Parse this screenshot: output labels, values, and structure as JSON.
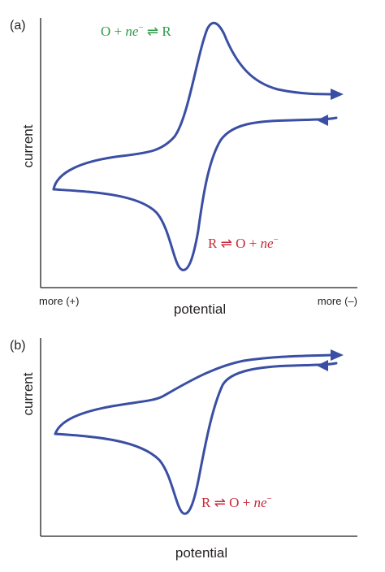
{
  "colors": {
    "curve": "#3a4fa3",
    "oxidation": "#2e9a48",
    "reduction": "#c8283a",
    "axis": "#231f20"
  },
  "chart_data": [
    {
      "type": "line",
      "panel_label": "(a)",
      "ylabel": "current",
      "xlabel": "potential",
      "x_tick_left": "more (+)",
      "x_tick_right": "more (–)",
      "annotations": [
        {
          "label_parts": [
            "O + ",
            "ne",
            "−",
            " ⇌ R"
          ],
          "color": "oxidation"
        },
        {
          "label_parts": [
            "R ⇌ O + ",
            "ne",
            "−",
            ""
          ],
          "color": "reduction"
        }
      ],
      "series": [
        {
          "direction": "forward-scan",
          "arrow": "right"
        },
        {
          "direction": "reverse-scan",
          "arrow": "left"
        }
      ]
    },
    {
      "type": "line",
      "panel_label": "(b)",
      "ylabel": "current",
      "xlabel": "potential",
      "annotations": [
        {
          "label_parts": [
            "R ⇌ O + ",
            "ne",
            "−",
            ""
          ],
          "color": "reduction"
        }
      ],
      "series": [
        {
          "direction": "forward-scan",
          "arrow": "right"
        },
        {
          "direction": "reverse-scan",
          "arrow": "left"
        }
      ]
    }
  ]
}
